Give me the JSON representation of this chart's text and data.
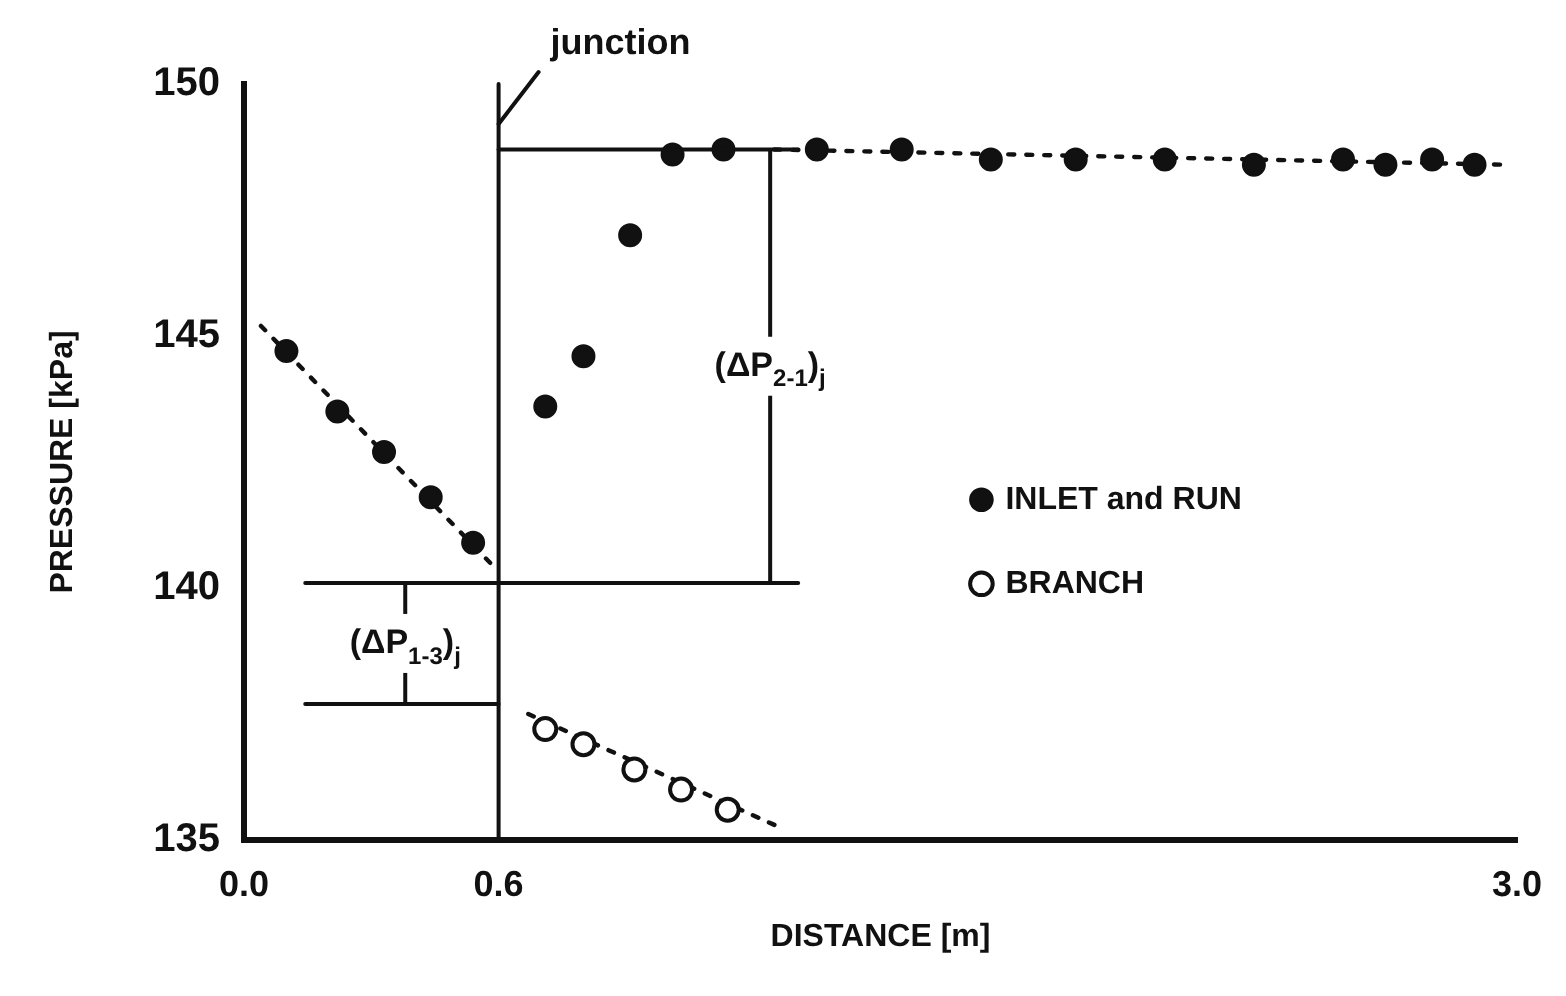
{
  "chart_data": {
    "type": "scatter",
    "xlabel": "DISTANCE [m]",
    "ylabel": "PRESSURE [kPa]",
    "xlim": [
      0,
      3.0
    ],
    "ylim": [
      135,
      150
    ],
    "xticks": [
      {
        "value": 0,
        "label": "0.0"
      },
      0.6,
      {
        "value": 3.0,
        "label": "3.0"
      }
    ],
    "yticks": [
      135,
      140,
      145,
      150
    ],
    "grid": false,
    "legend": "right",
    "series": [
      {
        "name": "INLET and RUN",
        "color": "#111111",
        "marker": "circle",
        "x": [
          0.1,
          0.22,
          0.33,
          0.44,
          0.54,
          0.71,
          0.8,
          0.91,
          1.01,
          1.13,
          1.35,
          1.55,
          1.76,
          1.96,
          2.17,
          2.38,
          2.59,
          2.69,
          2.8,
          2.9
        ],
        "values": [
          144.7,
          143.5,
          142.7,
          141.8,
          140.9,
          143.6,
          144.6,
          147.0,
          148.6,
          148.7,
          148.7,
          148.7,
          148.5,
          148.5,
          148.5,
          148.4,
          148.5,
          148.4,
          148.5,
          148.4
        ]
      },
      {
        "name": "BRANCH",
        "color": "#111111",
        "marker": "circle",
        "x": [
          0.71,
          0.8,
          0.92,
          1.03,
          1.14
        ],
        "values": [
          137.2,
          136.9,
          136.4,
          136.0,
          135.6
        ]
      },
      {
        "type": "line",
        "color": "#111111",
        "marker": "none",
        "line_style": "dotted",
        "x": [
          0.04,
          0.58
        ],
        "values": [
          145.2,
          140.5
        ]
      },
      {
        "type": "line",
        "color": "#111111",
        "marker": "none",
        "line_style": "dotted",
        "x": [
          1.25,
          2.96
        ],
        "values": [
          148.7,
          148.4
        ]
      },
      {
        "type": "line",
        "color": "#111111",
        "marker": "none",
        "line_style": "dotted",
        "x": [
          0.67,
          1.25
        ],
        "values": [
          137.5,
          135.3
        ]
      }
    ],
    "ref_lines": [
      {
        "axis": "x",
        "value": 0.6,
        "label": "junction"
      },
      {
        "axis": "y",
        "value": 148.7
      },
      {
        "axis": "y",
        "value": 140.1
      },
      {
        "axis": "y",
        "value": 137.7
      }
    ],
    "annotations": [
      {
        "text": "(ΔP$_{2-1}$)$_{j}$",
        "x": 1.24,
        "y": 148.7
      },
      {
        "text": "(ΔP$_{1-3}$)$_{j}$",
        "x": 0.38,
        "y": 140.1
      }
    ]
  }
}
